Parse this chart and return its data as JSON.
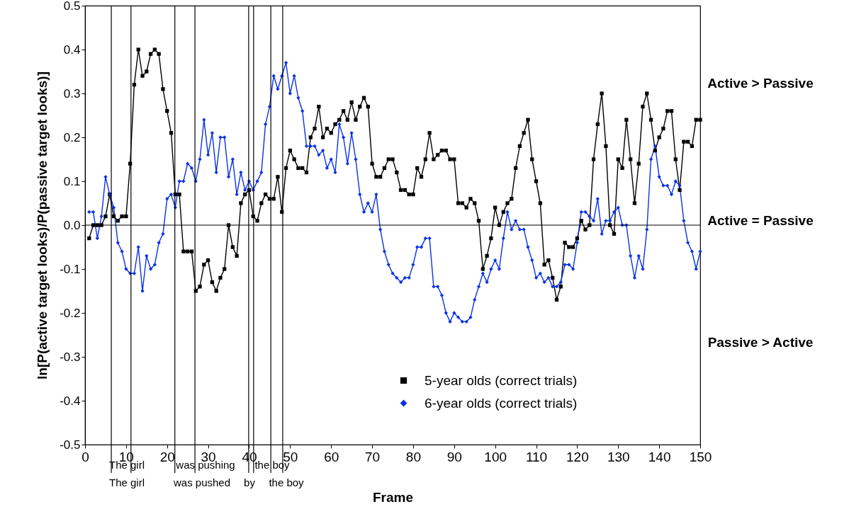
{
  "chart_data": {
    "type": "line",
    "xlabel": "Frame",
    "ylabel": "ln[P(active target looks)/P(passive target looks)]",
    "x": [
      1,
      2,
      3,
      4,
      5,
      6,
      7,
      8,
      9,
      10,
      11,
      12,
      13,
      14,
      15,
      16,
      17,
      18,
      19,
      20,
      21,
      22,
      23,
      24,
      25,
      26,
      27,
      28,
      29,
      30,
      31,
      32,
      33,
      34,
      35,
      36,
      37,
      38,
      39,
      40,
      41,
      42,
      43,
      44,
      45,
      46,
      47,
      48,
      49,
      50,
      51,
      52,
      53,
      54,
      55,
      56,
      57,
      58,
      59,
      60,
      61,
      62,
      63,
      64,
      65,
      66,
      67,
      68,
      69,
      70,
      71,
      72,
      73,
      74,
      75,
      76,
      77,
      78,
      79,
      80,
      81,
      82,
      83,
      84,
      85,
      86,
      87,
      88,
      89,
      90,
      91,
      92,
      93,
      94,
      95,
      96,
      97,
      98,
      99,
      100,
      101,
      102,
      103,
      104,
      105,
      106,
      107,
      108,
      109,
      110,
      111,
      112,
      113,
      114,
      115,
      116,
      117,
      118,
      119,
      120,
      121,
      122,
      123,
      124,
      125,
      126,
      127,
      128,
      129,
      130,
      131,
      132,
      133,
      134,
      135,
      136,
      137,
      138,
      139,
      140,
      141,
      142,
      143,
      144,
      145,
      146,
      147,
      148,
      149,
      150
    ],
    "series": [
      {
        "name": "5-year olds (correct trials)",
        "color": "#000000",
        "marker": "square",
        "values": [
          -0.03,
          0,
          0,
          0,
          0.02,
          0.07,
          0.02,
          0.01,
          0.02,
          0.02,
          0.14,
          0.32,
          0.4,
          0.34,
          0.35,
          0.39,
          0.4,
          0.39,
          0.31,
          0.26,
          0.21,
          0.07,
          0.07,
          -0.06,
          -0.06,
          -0.06,
          -0.15,
          -0.14,
          -0.09,
          -0.08,
          -0.13,
          -0.15,
          -0.12,
          -0.1,
          0,
          -0.05,
          -0.07,
          0.05,
          0.07,
          0.08,
          0.02,
          0.01,
          0.05,
          0.07,
          0.06,
          0.06,
          0.11,
          0.03,
          0.13,
          0.17,
          0.15,
          0.13,
          0.13,
          0.12,
          0.2,
          0.22,
          0.27,
          0.2,
          0.22,
          0.21,
          0.23,
          0.24,
          0.26,
          0.24,
          0.28,
          0.24,
          0.27,
          0.29,
          0.27,
          0.14,
          0.11,
          0.11,
          0.13,
          0.15,
          0.15,
          0.12,
          0.08,
          0.08,
          0.07,
          0.07,
          0.13,
          0.11,
          0.15,
          0.21,
          0.15,
          0.16,
          0.17,
          0.17,
          0.15,
          0.15,
          0.05,
          0.05,
          0.04,
          0.06,
          0.05,
          0.01,
          -0.1,
          -0.07,
          -0.03,
          0.04,
          0,
          0.03,
          0.05,
          0.06,
          0.13,
          0.18,
          0.21,
          0.24,
          0.15,
          0.1,
          0.05,
          -0.09,
          -0.08,
          -0.12,
          -0.17,
          -0.14,
          -0.04,
          -0.05,
          -0.05,
          -0.03,
          0.01,
          -0.01,
          0,
          0.15,
          0.23,
          0.3,
          0.18,
          0,
          -0.02,
          0.15,
          0.13,
          0.24,
          0.15,
          0.05,
          0.14,
          0.27,
          0.3,
          0.24,
          0.17,
          0.2,
          0.22,
          0.26,
          0.26,
          0.15,
          0.08,
          0.19,
          0.19,
          0.18,
          0.24,
          0.24
        ]
      },
      {
        "name": "6-year olds (correct trials)",
        "color": "#0a32e6",
        "marker": "diamond",
        "values": [
          0.03,
          0.03,
          -0.03,
          0.02,
          0.11,
          0.07,
          0.04,
          -0.04,
          -0.06,
          -0.1,
          -0.11,
          -0.11,
          -0.05,
          -0.15,
          -0.07,
          -0.1,
          -0.09,
          -0.04,
          -0.02,
          0.06,
          0.07,
          0.04,
          0.1,
          0.1,
          0.14,
          0.13,
          0.1,
          0.15,
          0.24,
          0.16,
          0.21,
          0.12,
          0.2,
          0.2,
          0.11,
          0.15,
          0.07,
          0.12,
          0.08,
          0.1,
          0.08,
          0.1,
          0.12,
          0.23,
          0.27,
          0.34,
          0.31,
          0.34,
          0.37,
          0.3,
          0.34,
          0.29,
          0.26,
          0.18,
          0.18,
          0.18,
          0.16,
          0.17,
          0.13,
          0.15,
          0.12,
          0.23,
          0.2,
          0.14,
          0.21,
          0.15,
          0.07,
          0.03,
          0.05,
          0.03,
          0.07,
          -0.01,
          -0.06,
          -0.09,
          -0.11,
          -0.12,
          -0.13,
          -0.12,
          -0.12,
          -0.09,
          -0.05,
          -0.05,
          -0.03,
          -0.03,
          -0.14,
          -0.14,
          -0.16,
          -0.2,
          -0.22,
          -0.2,
          -0.21,
          -0.22,
          -0.22,
          -0.21,
          -0.17,
          -0.14,
          -0.11,
          -0.13,
          -0.1,
          -0.08,
          -0.1,
          -0.03,
          0.03,
          -0.01,
          0.01,
          -0.01,
          -0.01,
          -0.05,
          -0.08,
          -0.12,
          -0.11,
          -0.13,
          -0.12,
          -0.14,
          -0.14,
          -0.13,
          -0.09,
          -0.09,
          -0.1,
          -0.04,
          0.03,
          0.03,
          0.02,
          0.01,
          0.06,
          -0.02,
          0.01,
          0.01,
          0.03,
          0.04,
          0,
          0,
          -0.07,
          -0.12,
          -0.07,
          -0.1,
          -0.01,
          0.15,
          0.18,
          0.11,
          0.09,
          0.09,
          0.07,
          0.1,
          0.09,
          0.01,
          -0.04,
          -0.06,
          -0.1,
          -0.06
        ]
      }
    ],
    "xlim": [
      0,
      150
    ],
    "xticks": [
      0,
      10,
      20,
      30,
      40,
      50,
      60,
      70,
      80,
      90,
      100,
      110,
      120,
      130,
      140,
      150
    ],
    "ylim": [
      -0.5,
      0.5
    ],
    "yticks": [
      -0.5,
      -0.4,
      -0.3,
      -0.2,
      -0.1,
      {
        "value": 0,
        "label": "0.0"
      },
      0.1,
      0.2,
      0.3,
      0.4,
      0.5
    ],
    "ref_lines": [
      {
        "axis": "y",
        "value": 0
      },
      {
        "axis": "x",
        "value": 6.4
      },
      {
        "axis": "x",
        "value": 11.2
      },
      {
        "axis": "x",
        "value": 21.9
      },
      {
        "axis": "x",
        "value": 26.8
      },
      {
        "axis": "x",
        "value": 39.9
      },
      {
        "axis": "x",
        "value": 41.1
      },
      {
        "axis": "x",
        "value": 45.3
      },
      {
        "axis": "x",
        "value": 48.2
      }
    ],
    "annotations": [
      "The girl",
      "was pushing",
      "the boy",
      "The girl",
      "was pushed",
      "by",
      "the boy",
      "Active > Passive",
      "Active = Passive",
      "Passive > Active"
    ],
    "legend": "bottom right",
    "grid": false
  }
}
